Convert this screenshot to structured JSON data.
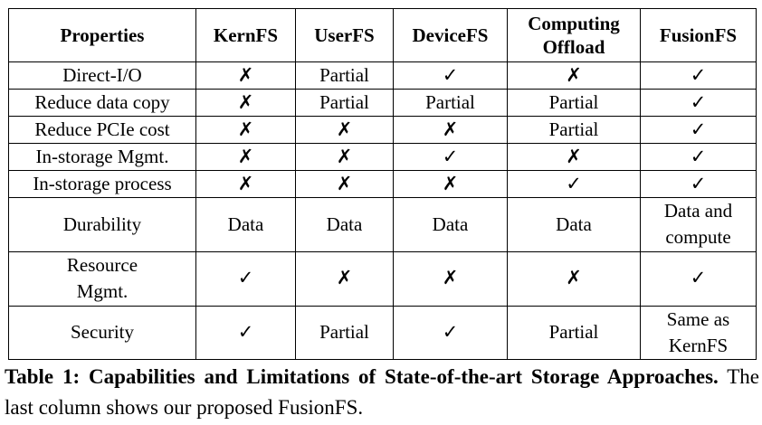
{
  "table": {
    "headers": [
      "Properties",
      "KernFS",
      "UserFS",
      "DeviceFS",
      "Computing\nOffload",
      "FusionFS"
    ],
    "rows": [
      {
        "cells": [
          "Direct-I/O",
          "✗",
          "Partial",
          "✓",
          "✗",
          "✓"
        ],
        "tall": false
      },
      {
        "cells": [
          "Reduce data copy",
          "✗",
          "Partial",
          "Partial",
          "Partial",
          "✓"
        ],
        "tall": false
      },
      {
        "cells": [
          "Reduce PCIe cost",
          "✗",
          "✗",
          "✗",
          "Partial",
          "✓"
        ],
        "tall": false
      },
      {
        "cells": [
          "In-storage Mgmt.",
          "✗",
          "✗",
          "✓",
          "✗",
          "✓"
        ],
        "tall": false
      },
      {
        "cells": [
          "In-storage process",
          "✗",
          "✗",
          "✗",
          "✓",
          "✓"
        ],
        "tall": false
      },
      {
        "cells": [
          "Durability",
          "Data",
          "Data",
          "Data",
          "Data",
          "Data and\ncompute"
        ],
        "tall": true
      },
      {
        "cells": [
          "Resource\nMgmt.",
          "✓",
          "✗",
          "✗",
          "✗",
          "✓"
        ],
        "tall": true
      },
      {
        "cells": [
          "Security",
          "✓",
          "Partial",
          "✓",
          "Partial",
          "Same as\nKernFS"
        ],
        "tall": true
      }
    ]
  },
  "caption": {
    "label": "Table 1:",
    "title": "Capabilities and Limitations of State-of-the-art Storage Approaches.",
    "text": "The last column shows our proposed FusionFS."
  }
}
